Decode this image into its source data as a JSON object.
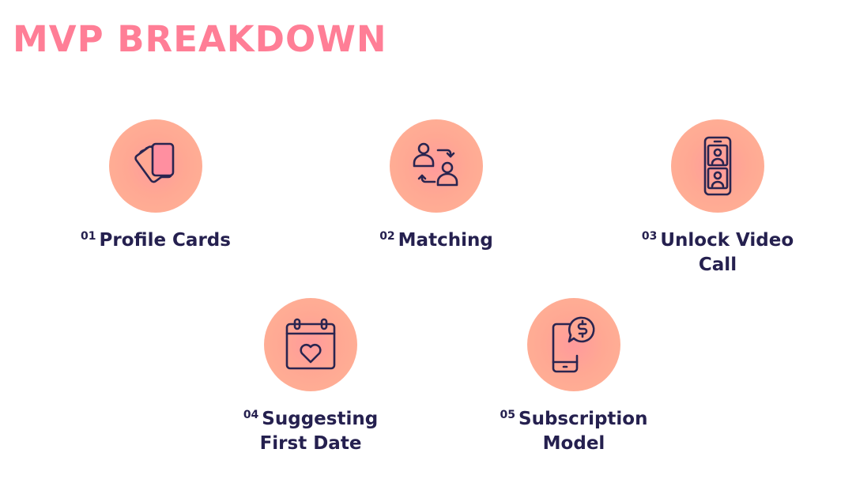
{
  "title": "MVP BREAKDOWN",
  "colors": {
    "title": "#ff7e96",
    "label": "#25204f",
    "circle": "#ffa893",
    "icon_stroke": "#2a2550"
  },
  "items": [
    {
      "number": "01",
      "line1": "Profile Cards",
      "line2": "",
      "icon": "cards-icon"
    },
    {
      "number": "02",
      "line1": "Matching",
      "line2": "",
      "icon": "swap-users-icon"
    },
    {
      "number": "03",
      "line1": "Unlock Video",
      "line2": "Call",
      "icon": "video-call-phone-icon"
    },
    {
      "number": "04",
      "line1": "Suggesting",
      "line2": "First Date",
      "icon": "calendar-heart-icon"
    },
    {
      "number": "05",
      "line1": "Subscription",
      "line2": "Model",
      "icon": "phone-dollar-chat-icon"
    }
  ]
}
